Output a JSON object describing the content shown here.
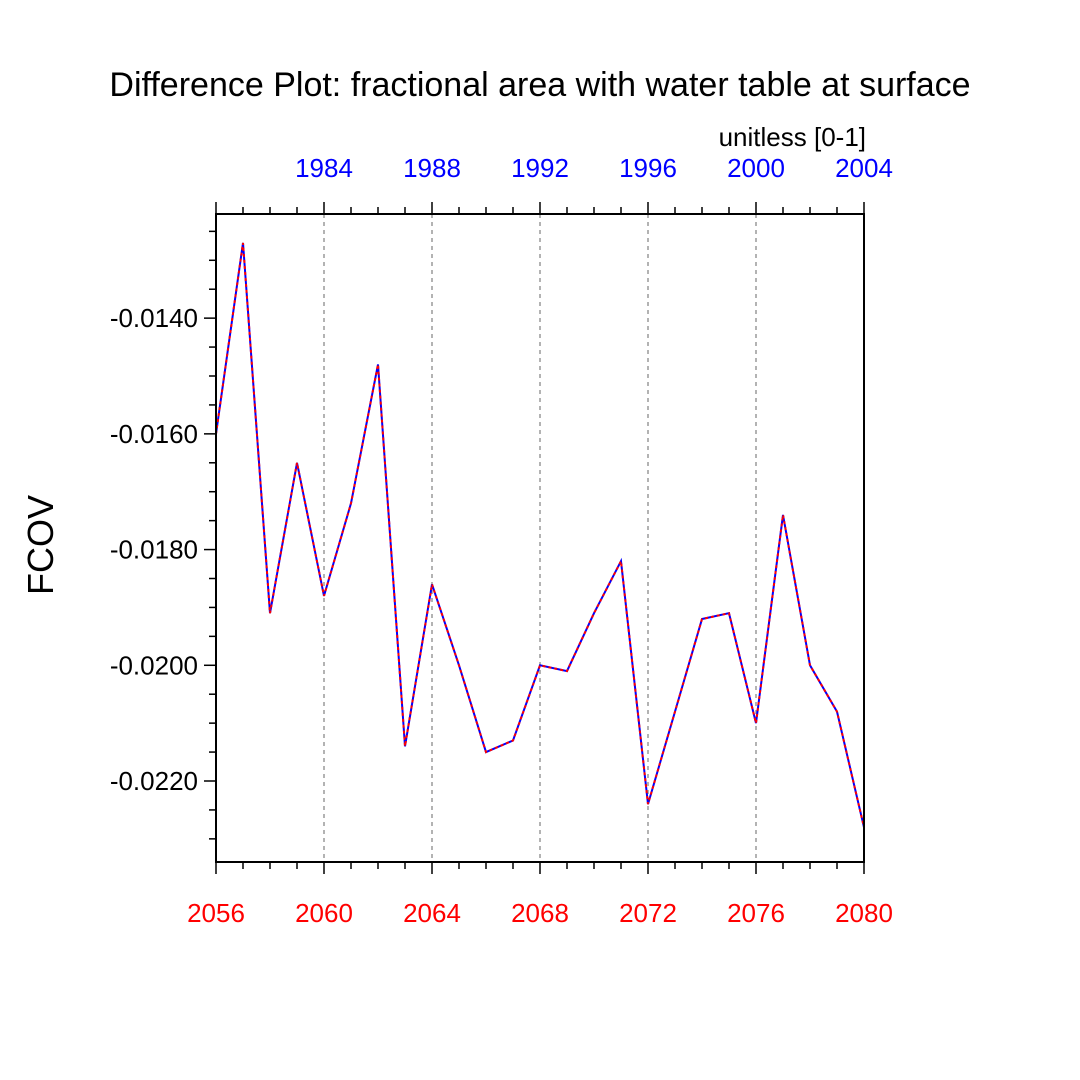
{
  "chart_data": {
    "type": "line",
    "title": "Difference Plot: fractional area with water table at surface",
    "units": "unitless [0-1]",
    "ylabel": "FCOV",
    "xlabel": "",
    "xlim": [
      2056,
      2080
    ],
    "ylim": [
      -0.0234,
      -0.0122
    ],
    "grid": "vertical dotted at major x ticks",
    "x_ticks": [
      2056,
      2060,
      2064,
      2068,
      2072,
      2076,
      2080
    ],
    "x_tick_labels": [
      "2056",
      "2060",
      "2064",
      "2068",
      "2072",
      "2076",
      "2080"
    ],
    "x_tick_color": "#ff0000",
    "top_x_ticks": [
      2060,
      2064,
      2068,
      2072,
      2076,
      2080
    ],
    "top_x_tick_labels": [
      "1984",
      "1988",
      "1992",
      "1996",
      "2000",
      "2004"
    ],
    "top_x_tick_color": "#0000ff",
    "y_ticks": [
      -0.014,
      -0.016,
      -0.018,
      -0.02,
      -0.022
    ],
    "y_tick_labels": [
      "-0.0140",
      "-0.0160",
      "-0.0180",
      "-0.0200",
      "-0.0220"
    ],
    "series": [
      {
        "name": "Difference",
        "color_solid": "#0000ff",
        "color_dash": "#ff0000",
        "x": [
          2056,
          2057,
          2058,
          2059,
          2060,
          2061,
          2062,
          2063,
          2064,
          2065,
          2066,
          2067,
          2068,
          2069,
          2070,
          2071,
          2072,
          2073,
          2074,
          2075,
          2076,
          2077,
          2078,
          2079,
          2080
        ],
        "values": [
          -0.016,
          -0.0127,
          -0.0191,
          -0.0165,
          -0.0188,
          -0.0172,
          -0.0148,
          -0.0214,
          -0.0186,
          -0.02,
          -0.0215,
          -0.0213,
          -0.02,
          -0.0201,
          -0.0191,
          -0.0182,
          -0.0224,
          -0.0208,
          -0.0192,
          -0.0191,
          -0.021,
          -0.0174,
          -0.02,
          -0.0208,
          -0.0228
        ]
      }
    ]
  }
}
